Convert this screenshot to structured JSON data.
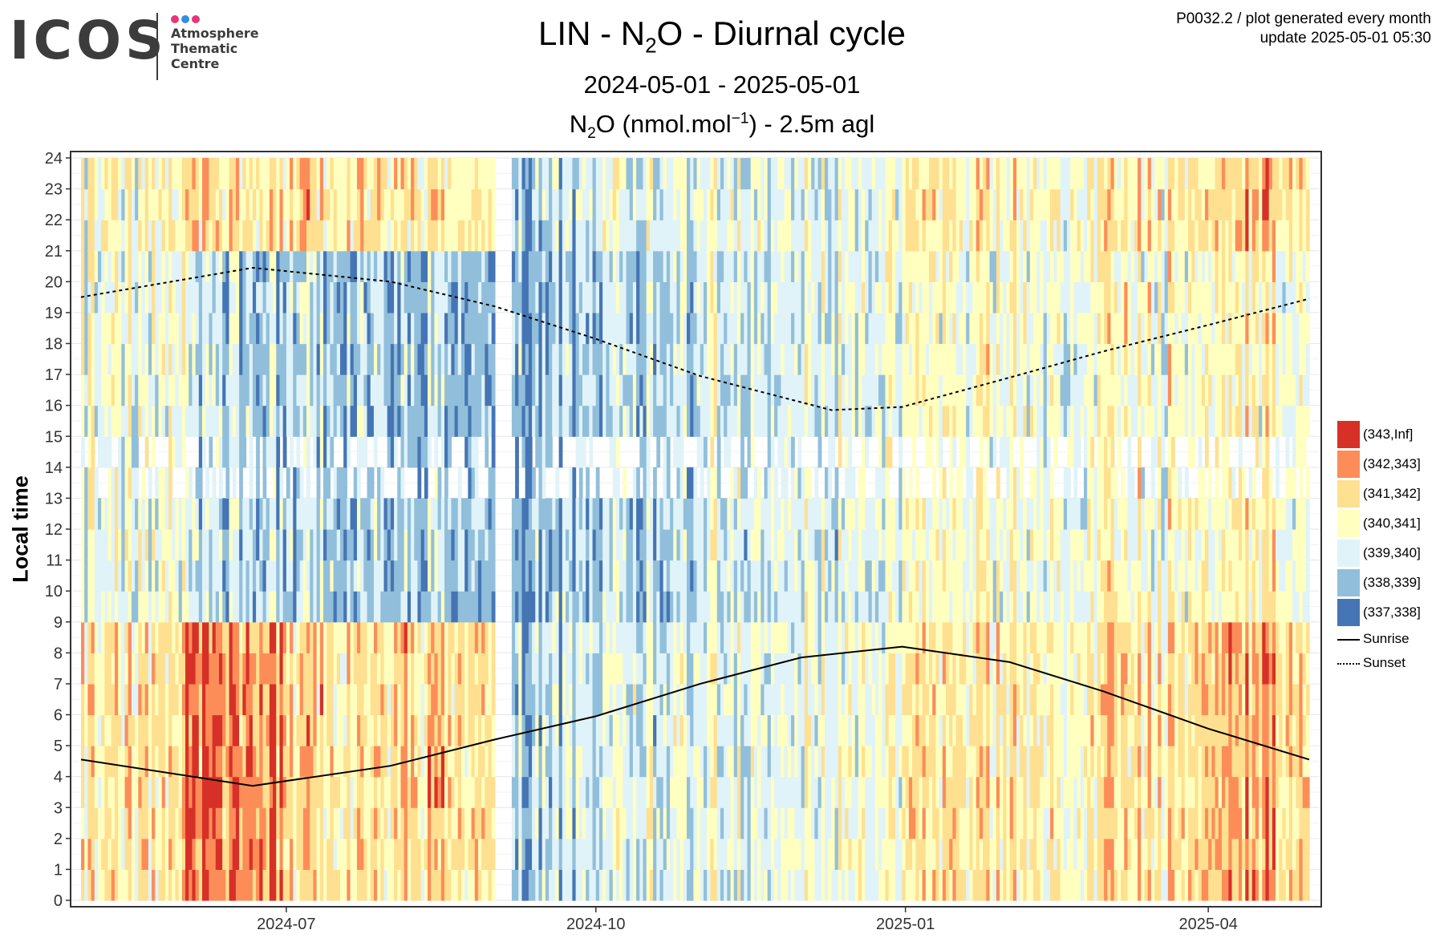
{
  "logo": {
    "text": "ICOS",
    "sub_line1": "Atmosphere",
    "sub_line2": "Thematic",
    "sub_line3": "Centre",
    "dot_colors": [
      "#e8357a",
      "#2f8fe0",
      "#e8357a"
    ]
  },
  "meta": {
    "line1": "P0032.2 / plot generated every month",
    "line2": "update  2025-05-01 05:30"
  },
  "header": {
    "title_before": "LIN - N",
    "title_sub": "2",
    "title_after": "O - Diurnal cycle",
    "period": "2024-05-01 - 2025-05-01",
    "subtitle_before": "N",
    "subtitle_sub": "2",
    "subtitle_mid": "O (nmol.mol",
    "subtitle_sup": "−1",
    "subtitle_after": ") - 2.5m agl"
  },
  "chart_data": {
    "type": "heatmap",
    "ylabel": "Local time",
    "xlabel": "",
    "x_start": "2024-05-01",
    "x_end": "2025-05-01",
    "x_ticks": [
      "2024-07",
      "2024-10",
      "2025-01",
      "2025-04"
    ],
    "y_ticks": [
      0,
      1,
      2,
      3,
      4,
      5,
      6,
      7,
      8,
      9,
      10,
      11,
      12,
      13,
      14,
      15,
      16,
      17,
      18,
      19,
      20,
      21,
      22,
      23,
      24
    ],
    "ylim": [
      0,
      24
    ],
    "grid": true,
    "legend_position": "right",
    "bins": [
      {
        "label": "(343,Inf]",
        "color": "#d73027"
      },
      {
        "label": "(342,343]",
        "color": "#fc8d59"
      },
      {
        "label": "(341,342]",
        "color": "#fee090"
      },
      {
        "label": "(340,341]",
        "color": "#ffffbf"
      },
      {
        "label": "(339,340]",
        "color": "#e0f3f8"
      },
      {
        "label": "(338,339]",
        "color": "#91bfdb"
      },
      {
        "label": "(337,338]",
        "color": "#4575b4"
      }
    ],
    "lines": [
      {
        "name": "Sunrise",
        "style": "solid",
        "points": [
          [
            "2024-05-01",
            4.55
          ],
          [
            "2024-06-21",
            3.7
          ],
          [
            "2024-08-01",
            4.35
          ],
          [
            "2024-09-01",
            5.2
          ],
          [
            "2024-10-01",
            5.95
          ],
          [
            "2024-11-01",
            7.0
          ],
          [
            "2024-12-01",
            7.85
          ],
          [
            "2024-12-31",
            8.2
          ],
          [
            "2025-02-01",
            7.7
          ],
          [
            "2025-03-01",
            6.75
          ],
          [
            "2025-04-01",
            5.55
          ],
          [
            "2025-05-01",
            4.55
          ]
        ]
      },
      {
        "name": "Sunset",
        "style": "dotted",
        "points": [
          [
            "2024-05-01",
            19.5
          ],
          [
            "2024-06-21",
            20.45
          ],
          [
            "2024-08-01",
            20.0
          ],
          [
            "2024-09-01",
            19.2
          ],
          [
            "2024-10-01",
            18.15
          ],
          [
            "2024-11-01",
            16.95
          ],
          [
            "2024-12-10",
            15.85
          ],
          [
            "2024-12-31",
            15.95
          ],
          [
            "2025-02-01",
            16.9
          ],
          [
            "2025-03-01",
            17.75
          ],
          [
            "2025-04-01",
            18.6
          ],
          [
            "2025-05-01",
            19.45
          ]
        ]
      }
    ],
    "gap": {
      "from": "2024-09-01",
      "to": "2024-09-06"
    },
    "daily_profile": {
      "night_hours": [
        0,
        8
      ],
      "day_hours": [
        9,
        20
      ],
      "evening_hours": [
        21,
        24
      ],
      "data_gap_hours": [
        13,
        15
      ],
      "period_means": [
        {
          "from": "2024-05-01",
          "to": "2024-06-01",
          "night": 341.0,
          "day": 339.9,
          "evening": 340.4
        },
        {
          "from": "2024-06-01",
          "to": "2024-07-01",
          "night": 342.6,
          "day": 339.2,
          "evening": 341.3
        },
        {
          "from": "2024-07-01",
          "to": "2024-08-01",
          "night": 341.2,
          "day": 338.9,
          "evening": 341.2
        },
        {
          "from": "2024-08-01",
          "to": "2024-09-01",
          "night": 341.4,
          "day": 338.7,
          "evening": 341.0
        },
        {
          "from": "2024-09-06",
          "to": "2024-10-01",
          "night": 339.0,
          "day": 338.4,
          "evening": 338.9
        },
        {
          "from": "2024-10-01",
          "to": "2024-11-01",
          "night": 339.6,
          "day": 339.0,
          "evening": 339.7
        },
        {
          "from": "2024-11-01",
          "to": "2024-12-01",
          "night": 339.9,
          "day": 339.6,
          "evening": 339.8
        },
        {
          "from": "2024-12-01",
          "to": "2025-01-01",
          "night": 340.2,
          "day": 339.8,
          "evening": 340.0
        },
        {
          "from": "2025-01-01",
          "to": "2025-02-01",
          "night": 341.1,
          "day": 340.3,
          "evening": 340.9
        },
        {
          "from": "2025-02-01",
          "to": "2025-03-01",
          "night": 340.8,
          "day": 340.2,
          "evening": 340.6
        },
        {
          "from": "2025-03-01",
          "to": "2025-04-01",
          "night": 341.2,
          "day": 340.3,
          "evening": 340.8
        },
        {
          "from": "2025-04-01",
          "to": "2025-05-01",
          "night": 342.0,
          "day": 340.6,
          "evening": 341.6
        }
      ]
    }
  }
}
